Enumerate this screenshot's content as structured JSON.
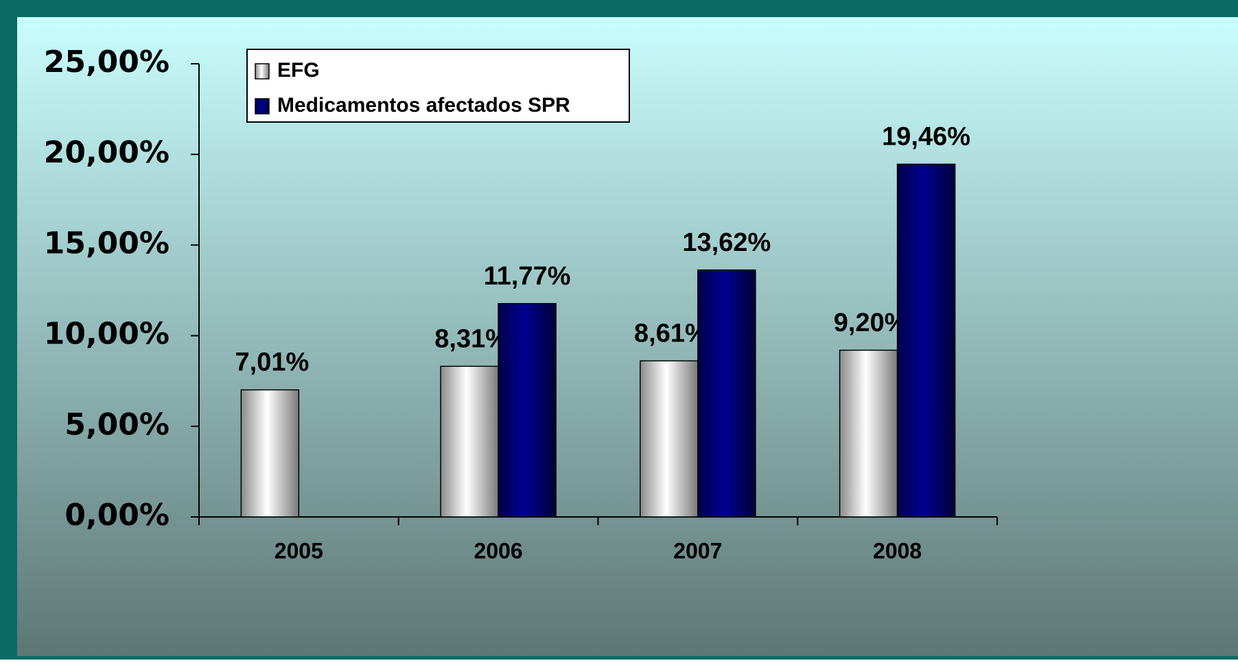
{
  "chart_data": {
    "type": "bar",
    "categories": [
      "2005",
      "2006",
      "2007",
      "2008"
    ],
    "series": [
      {
        "name": "EFG",
        "color": "#d9d9d9",
        "values": [
          7.01,
          8.31,
          8.61,
          9.2
        ],
        "value_labels": [
          "7,01%",
          "8,31%",
          "8,61%",
          "9,20%"
        ]
      },
      {
        "name": "Medicamentos afectados SPR",
        "color": "#000080",
        "values": [
          null,
          11.77,
          13.62,
          19.46
        ],
        "value_labels": [
          null,
          "11,77%",
          "13,62%",
          "19,46%"
        ]
      }
    ],
    "ylim": [
      0,
      25
    ],
    "yticks": [
      {
        "value": 0,
        "label": "0,00%"
      },
      {
        "value": 5,
        "label": "5,00%"
      },
      {
        "value": 10,
        "label": "10,00%"
      },
      {
        "value": 15,
        "label": "15,00%"
      },
      {
        "value": 20,
        "label": "20,00%"
      },
      {
        "value": 25,
        "label": "25,00%"
      }
    ],
    "legend": "top-left"
  }
}
